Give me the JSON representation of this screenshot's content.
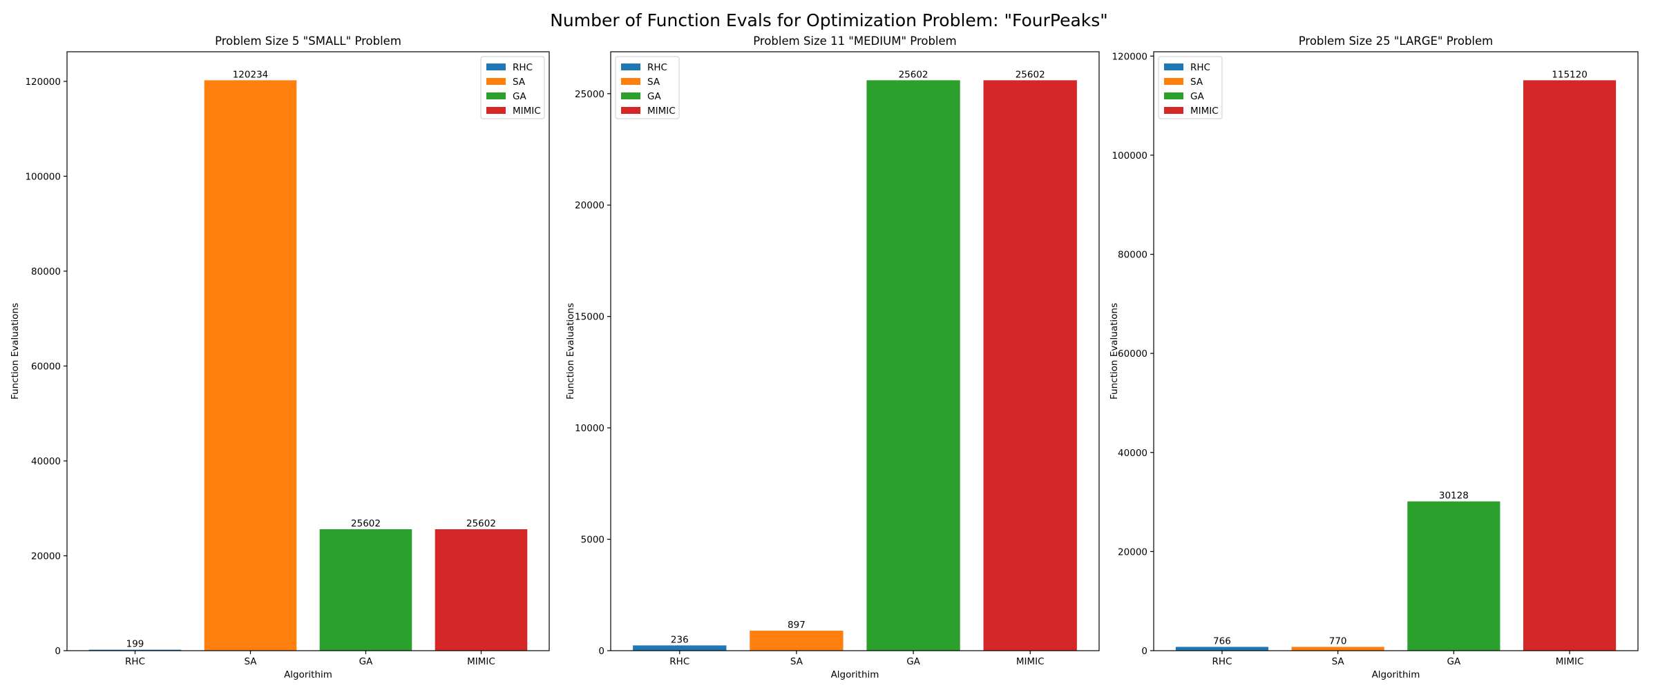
{
  "figure": {
    "title": "Number of Function Evals for Optimization Problem: \"FourPeaks\""
  },
  "chart_data": [
    {
      "type": "bar",
      "title": "Problem Size 5 \"SMALL\" Problem",
      "xlabel": "Algorithim",
      "ylabel": "Function Evaluations",
      "categories": [
        "RHC",
        "SA",
        "GA",
        "MIMIC"
      ],
      "values": [
        199,
        120234,
        25602,
        25602
      ],
      "colors": [
        "#1f77b4",
        "#ff7f0e",
        "#2ca02c",
        "#d62728"
      ],
      "ylim": [
        0,
        126245
      ],
      "yticks": [
        0,
        20000,
        40000,
        60000,
        80000,
        100000,
        120000
      ],
      "legend": [
        "RHC",
        "SA",
        "GA",
        "MIMIC"
      ],
      "legend_loc": "top-right",
      "grid": false
    },
    {
      "type": "bar",
      "title": "Problem Size 11 \"MEDIUM\" Problem",
      "xlabel": "Algorithim",
      "ylabel": "Function Evaluations",
      "categories": [
        "RHC",
        "SA",
        "GA",
        "MIMIC"
      ],
      "values": [
        236,
        897,
        25602,
        25602
      ],
      "colors": [
        "#1f77b4",
        "#ff7f0e",
        "#2ca02c",
        "#d62728"
      ],
      "ylim": [
        0,
        26882
      ],
      "yticks": [
        0,
        5000,
        10000,
        15000,
        20000,
        25000
      ],
      "legend": [
        "RHC",
        "SA",
        "GA",
        "MIMIC"
      ],
      "legend_loc": "top-left",
      "grid": false
    },
    {
      "type": "bar",
      "title": "Problem Size 25 \"LARGE\" Problem",
      "xlabel": "Algorithim",
      "ylabel": "Function Evaluations",
      "categories": [
        "RHC",
        "SA",
        "GA",
        "MIMIC"
      ],
      "values": [
        766,
        770,
        30128,
        115120
      ],
      "colors": [
        "#1f77b4",
        "#ff7f0e",
        "#2ca02c",
        "#d62728"
      ],
      "ylim": [
        0,
        120876
      ],
      "yticks": [
        0,
        20000,
        40000,
        60000,
        80000,
        100000,
        120000
      ],
      "legend": [
        "RHC",
        "SA",
        "GA",
        "MIMIC"
      ],
      "legend_loc": "top-left",
      "grid": false
    }
  ]
}
